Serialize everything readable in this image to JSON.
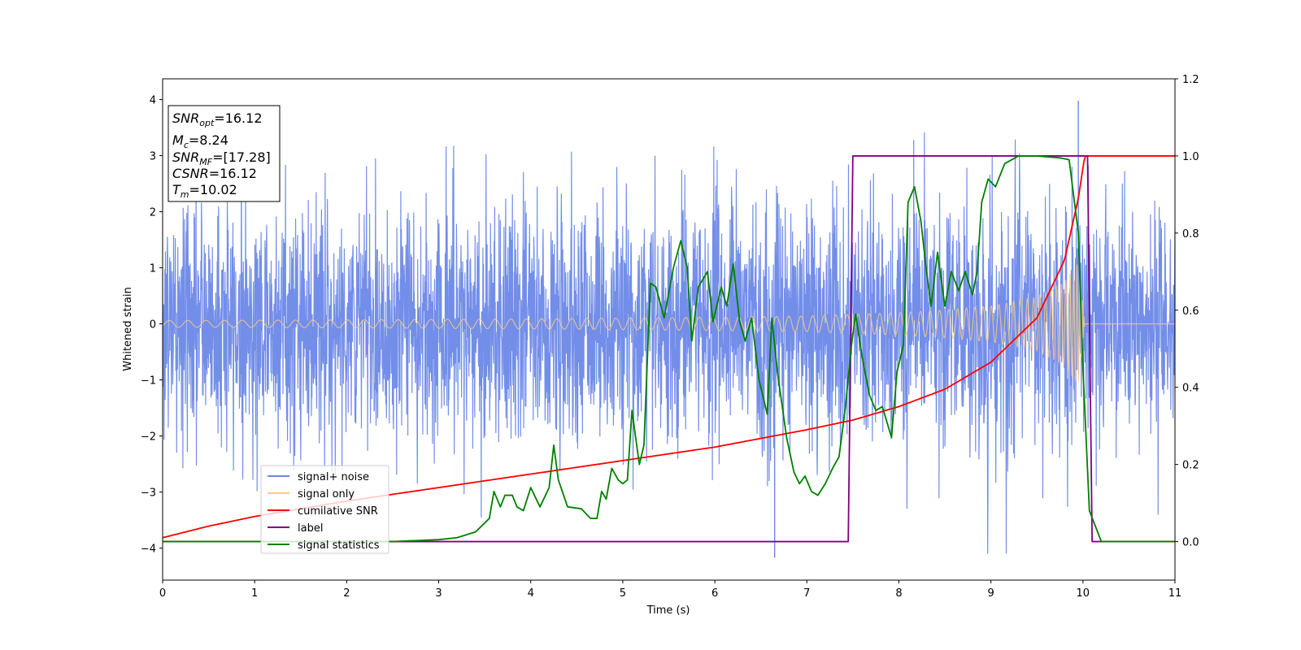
{
  "chart_data": {
    "type": "line",
    "title": "",
    "xlabel": "Time (s)",
    "ylabel": "Whitened strain",
    "xlim": [
      0,
      11
    ],
    "ylim": [
      -4.57,
      4.37
    ],
    "y2lim": [
      -0.1,
      1.2
    ],
    "xticks": [
      0,
      1,
      2,
      3,
      4,
      5,
      6,
      7,
      8,
      9,
      10,
      11
    ],
    "yticks": [
      -4,
      -3,
      -2,
      -1,
      0,
      1,
      2,
      3,
      4
    ],
    "y2ticks": [
      0.0,
      0.2,
      0.4,
      0.6,
      0.8,
      1.0,
      1.2
    ],
    "grid": false,
    "legend_position": "lower-left",
    "info_box": {
      "snr_opt": "=16.12",
      "mc": "=8.24",
      "snr_mf": "=[17.28]",
      "csnr": "=16.12",
      "tm": "=10.02"
    },
    "series": [
      {
        "name": "signal+ noise",
        "axis": "left",
        "color": "#6b88e8",
        "kind": "noise",
        "duration": 11,
        "sigma": 1.25,
        "notable_peaks": [
          [
            9.95,
            3.98
          ],
          [
            6.65,
            -4.17
          ]
        ],
        "note_chirp_end": 10.02
      },
      {
        "name": "signal only",
        "axis": "left",
        "color": "#ffcc80",
        "kind": "chirp",
        "t_merge": 10.02,
        "amplitude_envelope": [
          [
            0,
            0.06
          ],
          [
            2,
            0.07
          ],
          [
            4,
            0.09
          ],
          [
            6,
            0.12
          ],
          [
            7,
            0.14
          ],
          [
            8,
            0.2
          ],
          [
            8.5,
            0.25
          ],
          [
            9,
            0.32
          ],
          [
            9.5,
            0.48
          ],
          [
            9.8,
            0.75
          ],
          [
            9.95,
            1.1
          ],
          [
            10.0,
            0.3
          ],
          [
            10.02,
            0.0
          ],
          [
            11,
            0.0
          ]
        ]
      },
      {
        "name": "cumilative SNR",
        "axis": "right",
        "color": "#ff0000",
        "points": [
          [
            0,
            0.01
          ],
          [
            0.5,
            0.04
          ],
          [
            1,
            0.065
          ],
          [
            2,
            0.105
          ],
          [
            3,
            0.14
          ],
          [
            4,
            0.175
          ],
          [
            5,
            0.21
          ],
          [
            6,
            0.245
          ],
          [
            7,
            0.29
          ],
          [
            7.5,
            0.315
          ],
          [
            8,
            0.35
          ],
          [
            8.5,
            0.395
          ],
          [
            9,
            0.465
          ],
          [
            9.5,
            0.58
          ],
          [
            9.8,
            0.73
          ],
          [
            9.95,
            0.89
          ],
          [
            10.02,
            1.0
          ],
          [
            11,
            1.0
          ]
        ]
      },
      {
        "name": "label",
        "axis": "right",
        "color": "#800080",
        "points": [
          [
            0,
            0.0
          ],
          [
            7.45,
            0.0
          ],
          [
            7.5,
            1.0
          ],
          [
            10.05,
            1.0
          ],
          [
            10.1,
            0.0
          ],
          [
            11,
            0.0
          ]
        ]
      },
      {
        "name": "signal statistics",
        "axis": "right",
        "color": "#008000",
        "points": [
          [
            0,
            0.0
          ],
          [
            2.5,
            0.0
          ],
          [
            3.0,
            0.005
          ],
          [
            3.2,
            0.01
          ],
          [
            3.4,
            0.025
          ],
          [
            3.55,
            0.06
          ],
          [
            3.6,
            0.13
          ],
          [
            3.67,
            0.09
          ],
          [
            3.72,
            0.12
          ],
          [
            3.8,
            0.12
          ],
          [
            3.85,
            0.09
          ],
          [
            3.92,
            0.08
          ],
          [
            4.0,
            0.14
          ],
          [
            4.1,
            0.09
          ],
          [
            4.2,
            0.14
          ],
          [
            4.25,
            0.25
          ],
          [
            4.3,
            0.16
          ],
          [
            4.4,
            0.09
          ],
          [
            4.55,
            0.085
          ],
          [
            4.65,
            0.06
          ],
          [
            4.72,
            0.06
          ],
          [
            4.77,
            0.13
          ],
          [
            4.82,
            0.11
          ],
          [
            4.88,
            0.19
          ],
          [
            4.95,
            0.16
          ],
          [
            5.0,
            0.15
          ],
          [
            5.05,
            0.16
          ],
          [
            5.1,
            0.34
          ],
          [
            5.18,
            0.2
          ],
          [
            5.23,
            0.25
          ],
          [
            5.3,
            0.67
          ],
          [
            5.36,
            0.66
          ],
          [
            5.45,
            0.58
          ],
          [
            5.55,
            0.71
          ],
          [
            5.63,
            0.78
          ],
          [
            5.7,
            0.71
          ],
          [
            5.75,
            0.52
          ],
          [
            5.82,
            0.66
          ],
          [
            5.92,
            0.7
          ],
          [
            5.98,
            0.57
          ],
          [
            6.07,
            0.66
          ],
          [
            6.13,
            0.61
          ],
          [
            6.2,
            0.72
          ],
          [
            6.27,
            0.57
          ],
          [
            6.33,
            0.52
          ],
          [
            6.4,
            0.58
          ],
          [
            6.48,
            0.42
          ],
          [
            6.57,
            0.33
          ],
          [
            6.62,
            0.58
          ],
          [
            6.68,
            0.44
          ],
          [
            6.78,
            0.27
          ],
          [
            6.86,
            0.18
          ],
          [
            6.92,
            0.15
          ],
          [
            6.98,
            0.17
          ],
          [
            7.05,
            0.13
          ],
          [
            7.12,
            0.12
          ],
          [
            7.2,
            0.15
          ],
          [
            7.28,
            0.19
          ],
          [
            7.35,
            0.22
          ],
          [
            7.42,
            0.35
          ],
          [
            7.48,
            0.5
          ],
          [
            7.53,
            0.59
          ],
          [
            7.6,
            0.48
          ],
          [
            7.68,
            0.38
          ],
          [
            7.75,
            0.34
          ],
          [
            7.82,
            0.35
          ],
          [
            7.92,
            0.27
          ],
          [
            7.98,
            0.44
          ],
          [
            8.05,
            0.51
          ],
          [
            8.1,
            0.88
          ],
          [
            8.17,
            0.92
          ],
          [
            8.24,
            0.83
          ],
          [
            8.3,
            0.7
          ],
          [
            8.35,
            0.61
          ],
          [
            8.42,
            0.75
          ],
          [
            8.5,
            0.61
          ],
          [
            8.57,
            0.7
          ],
          [
            8.65,
            0.65
          ],
          [
            8.72,
            0.7
          ],
          [
            8.8,
            0.64
          ],
          [
            8.85,
            0.7
          ],
          [
            8.9,
            0.88
          ],
          [
            8.97,
            0.94
          ],
          [
            9.05,
            0.92
          ],
          [
            9.15,
            0.98
          ],
          [
            9.3,
            1.0
          ],
          [
            9.5,
            1.0
          ],
          [
            9.75,
            0.995
          ],
          [
            9.85,
            0.99
          ],
          [
            9.95,
            0.8
          ],
          [
            10.0,
            0.45
          ],
          [
            10.07,
            0.08
          ],
          [
            10.2,
            0.0
          ],
          [
            11,
            0.0
          ]
        ]
      }
    ]
  }
}
